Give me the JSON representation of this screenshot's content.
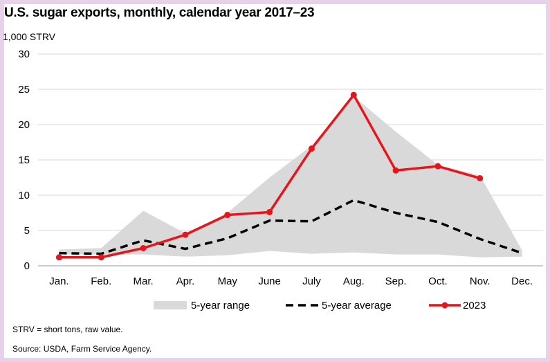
{
  "chart_data": {
    "type": "line",
    "title": "U.S. sugar exports, monthly, calendar year 2017–23",
    "ylabel": "1,000 STRV",
    "ylim": [
      0,
      30
    ],
    "yticks": [
      0,
      5,
      10,
      15,
      20,
      25,
      30
    ],
    "categories": [
      "Jan.",
      "Feb.",
      "Mar.",
      "Apr.",
      "May",
      "June",
      "July",
      "Aug.",
      "Sep.",
      "Oct.",
      "Nov.",
      "Dec."
    ],
    "range": {
      "name": "5-year range",
      "color": "#d9d9d9",
      "lower": [
        1.6,
        1.6,
        1.6,
        1.3,
        1.5,
        2.1,
        1.7,
        1.9,
        1.6,
        1.6,
        1.2,
        1.3
      ],
      "upper": [
        2.3,
        2.5,
        7.8,
        4.6,
        7.5,
        12.5,
        17.0,
        24.0,
        19.0,
        14.3,
        12.8,
        2.2
      ]
    },
    "series": [
      {
        "name": "5-year average",
        "color": "#000000",
        "style": "dashed",
        "values": [
          1.8,
          1.7,
          3.6,
          2.4,
          3.9,
          6.4,
          6.3,
          9.3,
          7.5,
          6.2,
          3.8,
          1.8
        ]
      },
      {
        "name": "2023",
        "color": "#e8141b",
        "style": "solid-markers",
        "values": [
          1.2,
          1.2,
          2.5,
          4.4,
          7.2,
          7.6,
          16.6,
          24.2,
          13.5,
          14.1,
          12.4,
          null
        ]
      }
    ],
    "grid": true,
    "legend": "bottom"
  },
  "notes": [
    "STRV = short tons, raw value.",
    "Source: USDA, Farm Service Agency."
  ]
}
